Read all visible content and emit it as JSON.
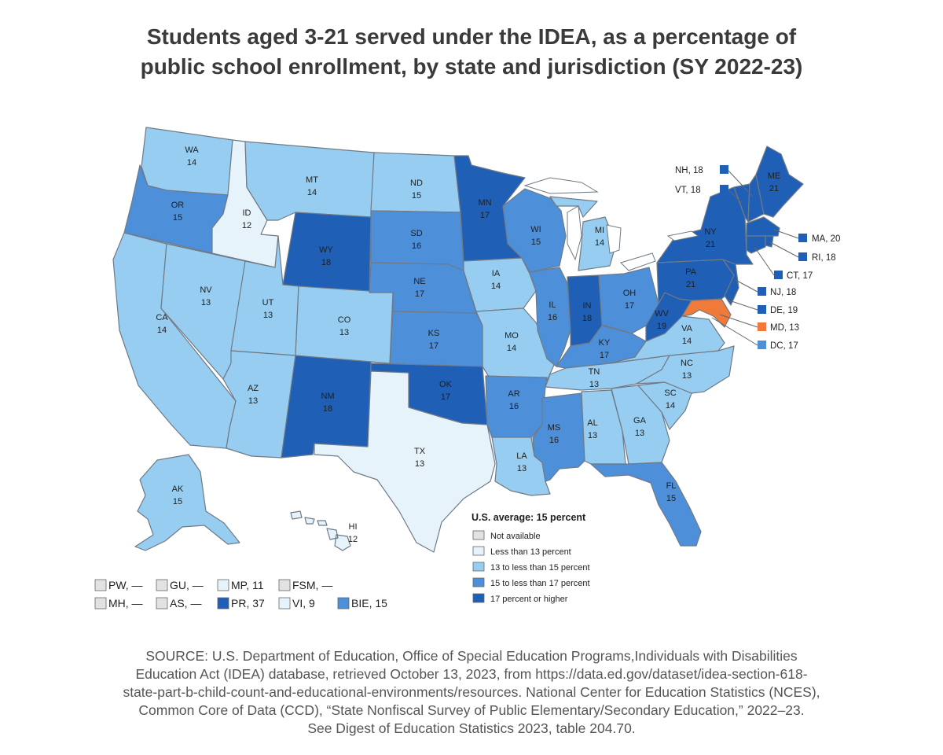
{
  "title": {
    "line1": "Students aged 3-21 served under the IDEA, as a percentage of",
    "line2": "public school enrollment, by state and jurisdiction (SY 2022-23)"
  },
  "colors": {
    "na": "#e2e2e2",
    "c1": "#e6f3fb",
    "c2": "#97cdf1",
    "c3": "#4e8fd9",
    "c4": "#1f5fb5",
    "highlight": "#f07a3a"
  },
  "states": {
    "WA": {
      "abbr": "WA",
      "value": "14",
      "cls": "c2"
    },
    "OR": {
      "abbr": "OR",
      "value": "15",
      "cls": "c3"
    },
    "CA": {
      "abbr": "CA",
      "value": "14",
      "cls": "c2"
    },
    "ID": {
      "abbr": "ID",
      "value": "12",
      "cls": "c1"
    },
    "NV": {
      "abbr": "NV",
      "value": "13",
      "cls": "c2"
    },
    "MT": {
      "abbr": "MT",
      "value": "14",
      "cls": "c2"
    },
    "WY": {
      "abbr": "WY",
      "value": "18",
      "cls": "c4"
    },
    "UT": {
      "abbr": "UT",
      "value": "13",
      "cls": "c2"
    },
    "CO": {
      "abbr": "CO",
      "value": "13",
      "cls": "c2"
    },
    "AZ": {
      "abbr": "AZ",
      "value": "13",
      "cls": "c2"
    },
    "NM": {
      "abbr": "NM",
      "value": "18",
      "cls": "c4"
    },
    "ND": {
      "abbr": "ND",
      "value": "15",
      "cls": "c2"
    },
    "SD": {
      "abbr": "SD",
      "value": "16",
      "cls": "c3"
    },
    "NE": {
      "abbr": "NE",
      "value": "17",
      "cls": "c3"
    },
    "KS": {
      "abbr": "KS",
      "value": "17",
      "cls": "c3"
    },
    "OK": {
      "abbr": "OK",
      "value": "17",
      "cls": "c4"
    },
    "TX": {
      "abbr": "TX",
      "value": "13",
      "cls": "c1"
    },
    "MN": {
      "abbr": "MN",
      "value": "17",
      "cls": "c4"
    },
    "IA": {
      "abbr": "IA",
      "value": "14",
      "cls": "c2"
    },
    "MO": {
      "abbr": "MO",
      "value": "14",
      "cls": "c2"
    },
    "AR": {
      "abbr": "AR",
      "value": "16",
      "cls": "c3"
    },
    "LA": {
      "abbr": "LA",
      "value": "13",
      "cls": "c2"
    },
    "WI": {
      "abbr": "WI",
      "value": "15",
      "cls": "c3"
    },
    "IL": {
      "abbr": "IL",
      "value": "16",
      "cls": "c3"
    },
    "MI": {
      "abbr": "MI",
      "value": "14",
      "cls": "c2"
    },
    "IN": {
      "abbr": "IN",
      "value": "18",
      "cls": "c4"
    },
    "OH": {
      "abbr": "OH",
      "value": "17",
      "cls": "c3"
    },
    "KY": {
      "abbr": "KY",
      "value": "17",
      "cls": "c3"
    },
    "TN": {
      "abbr": "TN",
      "value": "13",
      "cls": "c2"
    },
    "MS": {
      "abbr": "MS",
      "value": "16",
      "cls": "c3"
    },
    "AL": {
      "abbr": "AL",
      "value": "13",
      "cls": "c2"
    },
    "GA": {
      "abbr": "GA",
      "value": "13",
      "cls": "c2"
    },
    "FL": {
      "abbr": "FL",
      "value": "15",
      "cls": "c3"
    },
    "SC": {
      "abbr": "SC",
      "value": "14",
      "cls": "c2"
    },
    "NC": {
      "abbr": "NC",
      "value": "13",
      "cls": "c2"
    },
    "VA": {
      "abbr": "VA",
      "value": "14",
      "cls": "c2"
    },
    "WV": {
      "abbr": "WV",
      "value": "19",
      "cls": "c4"
    },
    "PA": {
      "abbr": "PA",
      "value": "21",
      "cls": "c4"
    },
    "NY": {
      "abbr": "NY",
      "value": "21",
      "cls": "c4"
    },
    "ME": {
      "abbr": "ME",
      "value": "21",
      "cls": "c4"
    },
    "AK": {
      "abbr": "AK",
      "value": "15",
      "cls": "c2"
    },
    "HI": {
      "abbr": "HI",
      "value": "12",
      "cls": "c1"
    }
  },
  "callouts": {
    "NH": "NH, 18",
    "VT": "VT, 18",
    "MA": "MA, 20",
    "RI": "RI, 18",
    "CT": "CT, 17",
    "NJ": "NJ, 18",
    "DE": "DE, 19",
    "MD": "MD, 13",
    "DC": "DC, 17"
  },
  "legend": {
    "title": "U.S. average: 15 percent",
    "items": [
      {
        "label": "Not available",
        "cls": "na"
      },
      {
        "label": "Less than 13 percent",
        "cls": "c1"
      },
      {
        "label": "13 to less than 15 percent",
        "cls": "c2"
      },
      {
        "label": "15 to less than 17 percent",
        "cls": "c3"
      },
      {
        "label": "17 percent or higher",
        "cls": "c4"
      }
    ]
  },
  "territories": {
    "PW": "PW, —",
    "GU": "GU, —",
    "MP": "MP, 11",
    "FSM": "FSM, —",
    "MH": "MH, —",
    "AS": "AS, —",
    "PR": "PR, 37",
    "VI": "VI, 9",
    "BIE": "BIE, 15"
  },
  "source": {
    "line1": "SOURCE: U.S. Department of Education, Office of Special Education Programs,Individuals with Disabilities",
    "line2": "Education Act (IDEA) database, retrieved October 13, 2023, from https://data.ed.gov/dataset/idea-section-618-",
    "line3": "state-part-b-child-count-and-educational-environments/resources. National Center for Education Statistics (NCES),",
    "line4": "Common Core of Data (CCD), “State Nonfiscal Survey of Public Elementary/Secondary Education,” 2022–23.",
    "line5": "See Digest of Education Statistics 2023, table 204.70."
  }
}
